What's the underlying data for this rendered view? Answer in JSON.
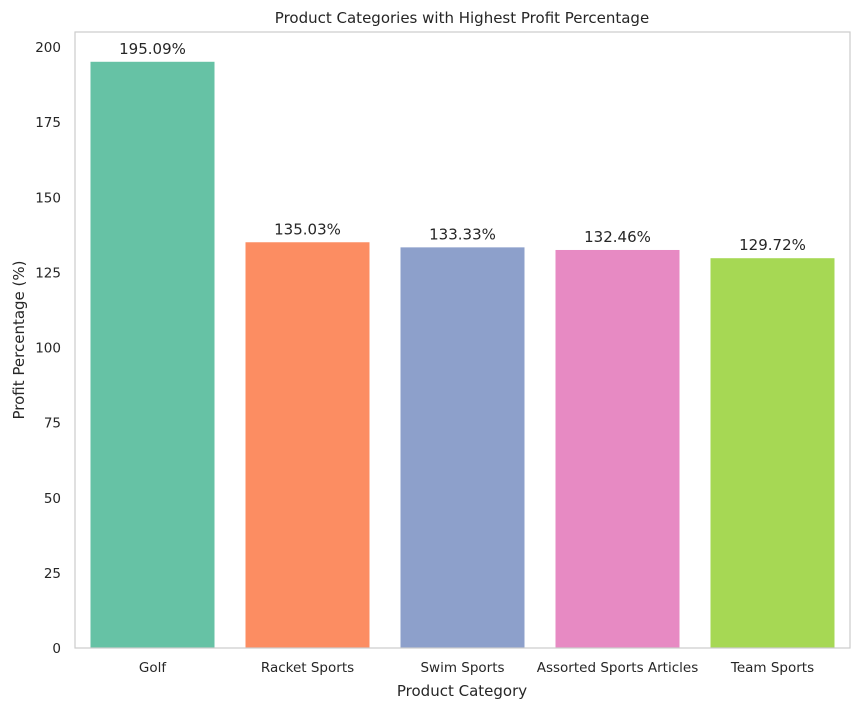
{
  "chart_data": {
    "type": "bar",
    "title": "Product Categories with Highest Profit Percentage",
    "xlabel": "Product Category",
    "ylabel": "Profit Percentage (%)",
    "categories": [
      "Golf",
      "Racket Sports",
      "Swim Sports",
      "Assorted Sports Articles",
      "Team Sports"
    ],
    "values": [
      195.09,
      135.03,
      133.33,
      132.46,
      129.72
    ],
    "data_labels": [
      "195.09%",
      "135.03%",
      "133.33%",
      "132.46%",
      "129.72%"
    ],
    "colors": [
      "#66c2a5",
      "#fc8d62",
      "#8da0cb",
      "#e78ac3",
      "#a6d854"
    ],
    "ylim": [
      0,
      205
    ],
    "yticks": [
      0,
      25,
      50,
      75,
      100,
      125,
      150,
      175,
      200
    ],
    "grid": false,
    "legend": "none"
  }
}
